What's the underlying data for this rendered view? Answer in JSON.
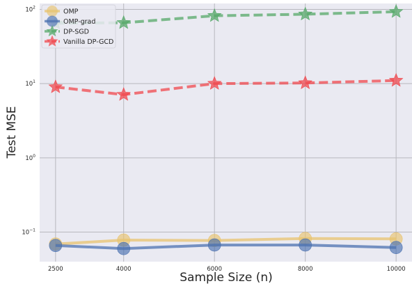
{
  "chart_data": {
    "type": "line",
    "xlabel": "Sample Size (n)",
    "ylabel": "Test MSE",
    "yscale": "log",
    "ylim": [
      0.04,
      120
    ],
    "xlim": [
      2150,
      10350
    ],
    "x_ticks": [
      2500,
      4000,
      6000,
      8000,
      10000
    ],
    "y_ticks": [
      {
        "value": 0.1,
        "base": "10",
        "exp": "−1"
      },
      {
        "value": 1,
        "base": "10",
        "exp": "0"
      },
      {
        "value": 10,
        "base": "10",
        "exp": "1"
      },
      {
        "value": 100,
        "base": "10",
        "exp": "2"
      }
    ],
    "grid": true,
    "background": "#eaeaf2",
    "legend_position": "top-left",
    "x": [
      2500,
      4000,
      6000,
      8000,
      10000
    ],
    "series": [
      {
        "name": "OMP",
        "values": [
          0.069,
          0.078,
          0.077,
          0.082,
          0.081
        ],
        "color": "#e8c36f",
        "marker": "circle",
        "dashed": false
      },
      {
        "name": "OMP-grad",
        "values": [
          0.066,
          0.06,
          0.067,
          0.067,
          0.062
        ],
        "color": "#4c72b0",
        "marker": "circle",
        "dashed": false
      },
      {
        "name": "DP-SGD",
        "values": [
          65,
          66,
          82,
          86,
          93
        ],
        "color": "#55a868",
        "marker": "star",
        "dashed": true
      },
      {
        "name": "Vanilla DP-GCD",
        "values": [
          9.0,
          7.1,
          10.0,
          10.2,
          11.0
        ],
        "color": "#f0484d",
        "marker": "star",
        "dashed": true
      }
    ]
  }
}
